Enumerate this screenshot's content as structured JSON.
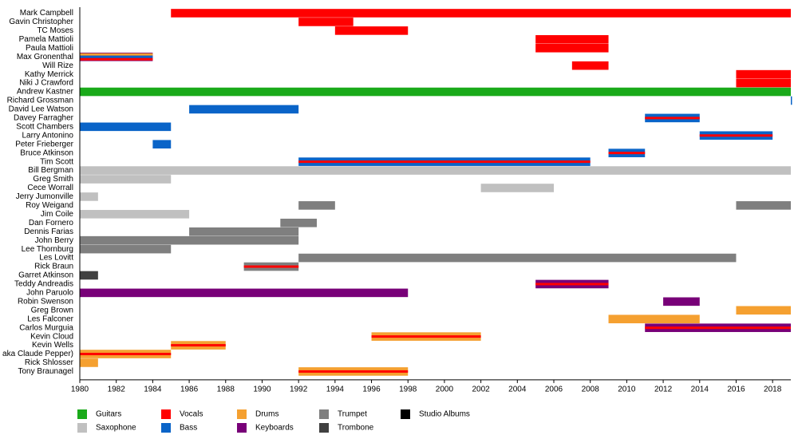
{
  "chart_data": {
    "type": "timeline",
    "xlim": [
      1980,
      2019
    ],
    "xticks": [
      1980,
      1982,
      1984,
      1986,
      1988,
      1990,
      1992,
      1994,
      1996,
      1998,
      2000,
      2002,
      2004,
      2006,
      2008,
      2010,
      2012,
      2014,
      2016,
      2018
    ],
    "legend": [
      {
        "name": "Guitars",
        "color": "#1aaa1a"
      },
      {
        "name": "Saxophone",
        "color": "#c0c0c0"
      },
      {
        "name": "Vocals",
        "color": "#ff0000"
      },
      {
        "name": "Bass",
        "color": "#0a64c8"
      },
      {
        "name": "Drums",
        "color": "#f5a030"
      },
      {
        "name": "Keyboards",
        "color": "#780078"
      },
      {
        "name": "Trumpet",
        "color": "#7f7f7f"
      },
      {
        "name": "Trombone",
        "color": "#404040"
      },
      {
        "name": "Studio Albums",
        "color": "#000000"
      }
    ],
    "members": [
      {
        "name": "Mark Campbell",
        "spans": [
          {
            "start": 1985,
            "end": 2019,
            "roles": [
              "Vocals"
            ]
          }
        ]
      },
      {
        "name": "Gavin Christopher",
        "spans": [
          {
            "start": 1992,
            "end": 1995,
            "roles": [
              "Vocals"
            ]
          }
        ]
      },
      {
        "name": "TC Moses",
        "spans": [
          {
            "start": 1994,
            "end": 1998,
            "roles": [
              "Vocals"
            ]
          }
        ]
      },
      {
        "name": "Pamela Mattioli",
        "spans": [
          {
            "start": 2005,
            "end": 2009,
            "roles": [
              "Vocals"
            ]
          }
        ]
      },
      {
        "name": "Paula Mattioli",
        "spans": [
          {
            "start": 2005,
            "end": 2009,
            "roles": [
              "Vocals"
            ]
          }
        ]
      },
      {
        "name": "Max Gronenthal",
        "spans": [
          {
            "start": 1980,
            "end": 1984,
            "roles": [
              "Keyboards",
              "Drums",
              "Bass",
              "Vocals"
            ]
          }
        ]
      },
      {
        "name": "Will Rize",
        "spans": [
          {
            "start": 2007,
            "end": 2009,
            "roles": [
              "Vocals"
            ]
          }
        ]
      },
      {
        "name": "Kathy Merrick",
        "spans": [
          {
            "start": 2016,
            "end": 2019,
            "roles": [
              "Vocals"
            ]
          }
        ]
      },
      {
        "name": "Niki J Crawford",
        "spans": [
          {
            "start": 2016,
            "end": 2019,
            "roles": [
              "Vocals"
            ]
          }
        ]
      },
      {
        "name": "Andrew Kastner",
        "spans": [
          {
            "start": 1980,
            "end": 2019,
            "roles": [
              "Guitars"
            ]
          }
        ]
      },
      {
        "name": "Richard Grossman",
        "spans": [
          {
            "start": 2019,
            "end": 2019,
            "roles": [
              "Bass"
            ]
          }
        ]
      },
      {
        "name": "David Lee Watson",
        "spans": [
          {
            "start": 1986,
            "end": 1992,
            "roles": [
              "Bass"
            ]
          }
        ]
      },
      {
        "name": "Davey Farragher",
        "spans": [
          {
            "start": 2011,
            "end": 2014,
            "roles": [
              "Bass",
              "Vocals"
            ]
          }
        ]
      },
      {
        "name": "Scott Chambers",
        "spans": [
          {
            "start": 1980,
            "end": 1985,
            "roles": [
              "Bass"
            ]
          }
        ]
      },
      {
        "name": "Larry Antonino",
        "spans": [
          {
            "start": 2014,
            "end": 2018,
            "roles": [
              "Bass",
              "Vocals"
            ]
          }
        ]
      },
      {
        "name": "Peter Frieberger",
        "spans": [
          {
            "start": 1984,
            "end": 1985,
            "roles": [
              "Bass"
            ]
          }
        ]
      },
      {
        "name": "Bruce Atkinson",
        "spans": [
          {
            "start": 2009,
            "end": 2011,
            "roles": [
              "Bass",
              "Vocals"
            ]
          }
        ]
      },
      {
        "name": "Tim Scott",
        "spans": [
          {
            "start": 1992,
            "end": 2008,
            "roles": [
              "Bass",
              "Vocals"
            ]
          }
        ]
      },
      {
        "name": "Bill Bergman",
        "spans": [
          {
            "start": 1980,
            "end": 2019,
            "roles": [
              "Saxophone"
            ]
          }
        ]
      },
      {
        "name": "Greg Smith",
        "spans": [
          {
            "start": 1980,
            "end": 1985,
            "roles": [
              "Saxophone"
            ]
          }
        ]
      },
      {
        "name": "Cece Worrall",
        "spans": [
          {
            "start": 2002,
            "end": 2006,
            "roles": [
              "Saxophone"
            ]
          }
        ]
      },
      {
        "name": "Jerry Jumonville",
        "spans": [
          {
            "start": 1980,
            "end": 1981,
            "roles": [
              "Saxophone"
            ]
          }
        ]
      },
      {
        "name": "Roy Weigand",
        "spans": [
          {
            "start": 1992,
            "end": 1994,
            "roles": [
              "Trumpet"
            ]
          },
          {
            "start": 2016,
            "end": 2019,
            "roles": [
              "Trumpet"
            ]
          }
        ]
      },
      {
        "name": "Jim Coile",
        "spans": [
          {
            "start": 1980,
            "end": 1986,
            "roles": [
              "Saxophone"
            ]
          }
        ]
      },
      {
        "name": "Dan Fornero",
        "spans": [
          {
            "start": 1991,
            "end": 1993,
            "roles": [
              "Trumpet"
            ]
          }
        ]
      },
      {
        "name": "Dennis Farias",
        "spans": [
          {
            "start": 1986,
            "end": 1992,
            "roles": [
              "Trumpet"
            ]
          }
        ]
      },
      {
        "name": "John Berry",
        "spans": [
          {
            "start": 1980,
            "end": 1992,
            "roles": [
              "Trumpet"
            ]
          }
        ]
      },
      {
        "name": "Lee Thornburg",
        "spans": [
          {
            "start": 1980,
            "end": 1985,
            "roles": [
              "Trumpet"
            ]
          }
        ]
      },
      {
        "name": "Les Lovitt",
        "spans": [
          {
            "start": 1992,
            "end": 2016,
            "roles": [
              "Trumpet"
            ]
          }
        ]
      },
      {
        "name": "Rick Braun",
        "spans": [
          {
            "start": 1989,
            "end": 1992,
            "roles": [
              "Trumpet",
              "Vocals"
            ]
          }
        ]
      },
      {
        "name": "Garret Atkinson",
        "spans": [
          {
            "start": 1980,
            "end": 1981,
            "roles": [
              "Trombone"
            ]
          }
        ]
      },
      {
        "name": "Teddy Andreadis",
        "spans": [
          {
            "start": 2005,
            "end": 2009,
            "roles": [
              "Keyboards",
              "Vocals"
            ]
          }
        ]
      },
      {
        "name": "John Paruolo",
        "spans": [
          {
            "start": 1980,
            "end": 1998,
            "roles": [
              "Keyboards"
            ]
          }
        ]
      },
      {
        "name": "Robin Swenson",
        "spans": [
          {
            "start": 2012,
            "end": 2014,
            "roles": [
              "Keyboards"
            ]
          }
        ]
      },
      {
        "name": "Greg Brown",
        "spans": [
          {
            "start": 2016,
            "end": 2019,
            "roles": [
              "Drums"
            ]
          }
        ]
      },
      {
        "name": "Les Falconer",
        "spans": [
          {
            "start": 2009,
            "end": 2014,
            "roles": [
              "Drums"
            ]
          }
        ]
      },
      {
        "name": "Carlos Murguia",
        "spans": [
          {
            "start": 2011,
            "end": 2019,
            "roles": [
              "Keyboards",
              "Vocals"
            ]
          }
        ]
      },
      {
        "name": "Kevin Cloud",
        "spans": [
          {
            "start": 1996,
            "end": 2002,
            "roles": [
              "Drums",
              "Vocals"
            ]
          }
        ]
      },
      {
        "name": "Kevin Wells",
        "spans": [
          {
            "start": 1985,
            "end": 1988,
            "roles": [
              "Drums",
              "Vocals"
            ]
          }
        ]
      },
      {
        "name": "aka Claude Pepper)",
        "spans": [
          {
            "start": 1980,
            "end": 1985,
            "roles": [
              "Drums",
              "Vocals"
            ]
          }
        ]
      },
      {
        "name": "Rick Shlosser",
        "spans": [
          {
            "start": 1980,
            "end": 1981,
            "roles": [
              "Drums"
            ]
          }
        ]
      },
      {
        "name": "Tony Braunagel",
        "spans": [
          {
            "start": 1992,
            "end": 1998,
            "roles": [
              "Drums",
              "Vocals"
            ]
          }
        ]
      }
    ]
  }
}
